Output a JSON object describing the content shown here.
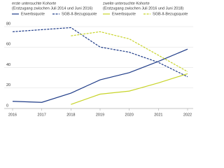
{
  "chart_data": {
    "type": "line",
    "x": [
      2016,
      2017,
      2018,
      2019,
      2020,
      2021,
      2022
    ],
    "xlim": [
      2016,
      2022
    ],
    "xticks": [
      2016,
      2017,
      2018,
      2019,
      2020,
      2021,
      2022
    ],
    "ylim": [
      0,
      80
    ],
    "yticks": [
      0,
      20,
      40,
      60,
      80
    ],
    "grid": true,
    "groups": [
      {
        "title": "erste untersuchte Kohorte",
        "subtitle": "(Erstzugang zwischen Juli 2014 und Juni 2016)",
        "series": [
          {
            "name": "Erwerbsquote",
            "color": "#1f3c88",
            "dashed": false,
            "values": [
              7,
              6,
              15,
              28,
              35,
              46,
              58
            ]
          },
          {
            "name": "SGB-II-Bezugsquote",
            "color": "#1f3c88",
            "dashed": true,
            "values": [
              75,
              77,
              79,
              60,
              55,
              45,
              31
            ]
          }
        ]
      },
      {
        "title": "zweite untersuchte Kohorte",
        "subtitle": "(Erstzugang zwischen Juli 2016 und Juni 2018)",
        "series": [
          {
            "name": "Erwerbsquote",
            "color": "#c8d42a",
            "dashed": false,
            "values": [
              null,
              null,
              4,
              14,
              17,
              25,
              34
            ]
          },
          {
            "name": "SGB-II-Bezugsquote",
            "color": "#c8d42a",
            "dashed": true,
            "values": [
              null,
              null,
              71,
              75,
              68,
              52,
              36
            ]
          }
        ]
      }
    ]
  }
}
